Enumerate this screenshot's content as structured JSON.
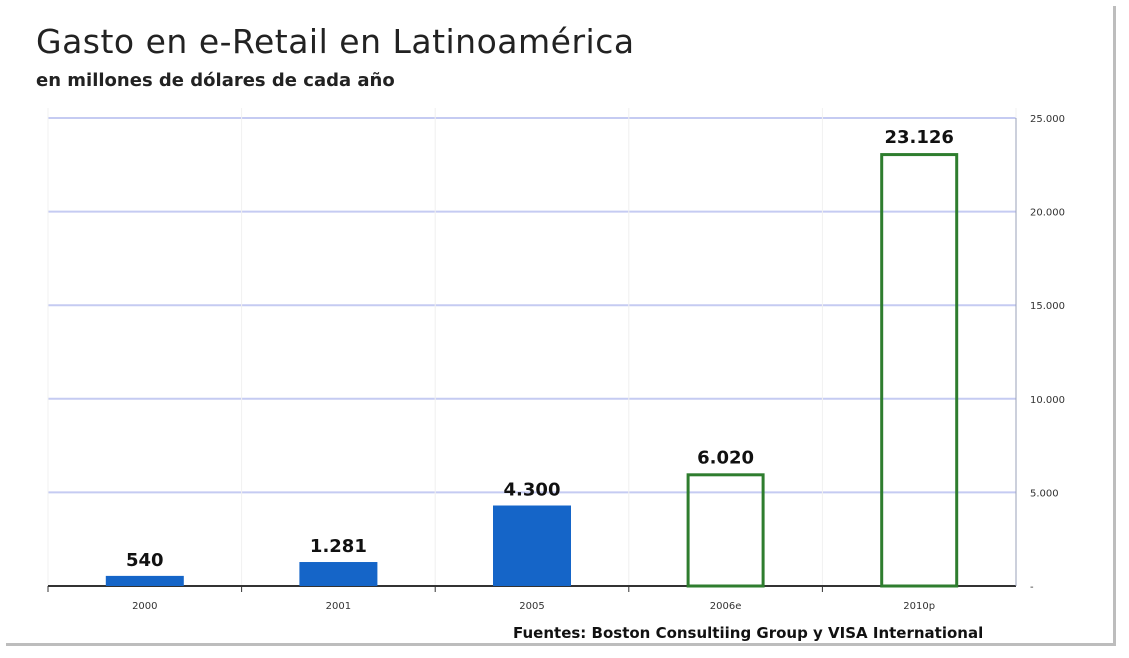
{
  "chart_data": {
    "type": "bar",
    "title": "Gasto en e-Retail en Latinoamérica",
    "subtitle": "en millones de dólares de cada año",
    "source": "Fuentes: Boston Consultiing Group y VISA International",
    "categories": [
      "2000",
      "2001",
      "2005",
      "2006e",
      "2010p"
    ],
    "values": [
      540,
      1281,
      4300,
      6020,
      23126
    ],
    "value_labels": [
      "540",
      "1.281",
      "4.300",
      "6.020",
      "23.126"
    ],
    "bar_styles": [
      "filled",
      "filled",
      "filled",
      "outline",
      "outline"
    ],
    "ylim": [
      0,
      25000
    ],
    "yticks": [
      0,
      5000,
      10000,
      15000,
      20000,
      25000
    ],
    "ytick_labels": [
      "-",
      "5.000",
      "10.000",
      "15.000",
      "20.000",
      "25.000"
    ],
    "y_axis_side": "right",
    "grid": true,
    "xlabel": "",
    "ylabel": "",
    "colors": {
      "filled": "#1565c8",
      "outline": "#2e7d2e",
      "grid": "#c5cbf2",
      "axis": "#333333"
    }
  }
}
